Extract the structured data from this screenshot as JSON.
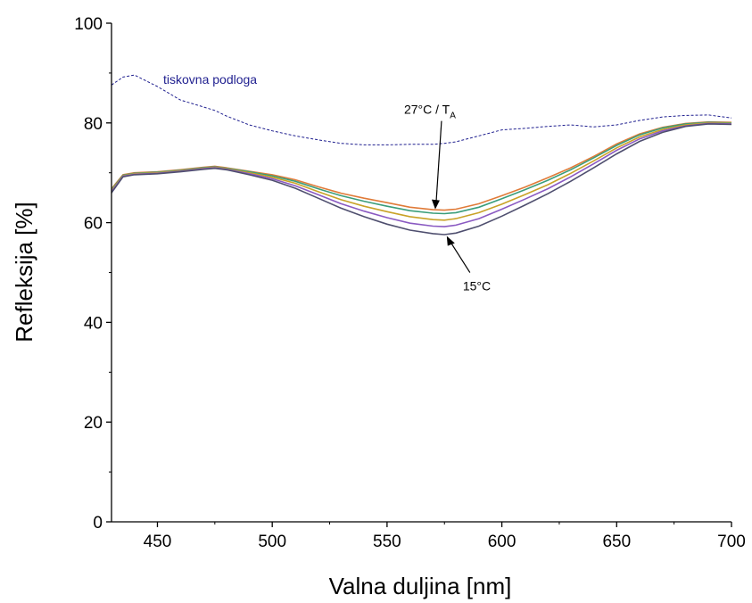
{
  "chart_data": {
    "type": "line",
    "xlabel": "Valna duljina [nm]",
    "ylabel": "Refleksija [%]",
    "xlim": [
      430,
      700
    ],
    "ylim": [
      0,
      100
    ],
    "x_ticks": [
      450,
      500,
      550,
      600,
      650,
      700
    ],
    "y_ticks": [
      0,
      20,
      40,
      60,
      80,
      100
    ],
    "grid": false,
    "x": [
      430,
      435,
      440,
      450,
      460,
      470,
      475,
      480,
      490,
      500,
      510,
      520,
      530,
      540,
      550,
      560,
      570,
      575,
      580,
      590,
      600,
      610,
      620,
      630,
      640,
      650,
      660,
      670,
      680,
      690,
      700
    ],
    "series": [
      {
        "name": "tiskovna podloga",
        "color": "#1f1f8f",
        "style": "dashed",
        "values": [
          87.6,
          89.2,
          89.6,
          87.3,
          84.6,
          83.2,
          82.5,
          81.4,
          79.6,
          78.4,
          77.4,
          76.6,
          75.9,
          75.6,
          75.6,
          75.7,
          75.7,
          75.9,
          76.2,
          77.4,
          78.6,
          78.9,
          79.3,
          79.6,
          79.2,
          79.6,
          80.5,
          81.2,
          81.5,
          81.6,
          81.0
        ]
      },
      {
        "name": "",
        "color": "#e07b39",
        "values": [
          66.8,
          69.6,
          70.0,
          70.2,
          70.6,
          71.1,
          71.3,
          71.0,
          70.3,
          69.6,
          68.6,
          67.2,
          65.9,
          64.9,
          64.0,
          63.1,
          62.6,
          62.5,
          62.7,
          63.8,
          65.4,
          67.1,
          69.0,
          71.0,
          73.3,
          75.8,
          77.8,
          79.1,
          79.9,
          80.2,
          80.1
        ]
      },
      {
        "name": "",
        "color": "#3a9d7a",
        "values": [
          66.6,
          69.5,
          69.9,
          70.1,
          70.5,
          71.0,
          71.2,
          70.9,
          70.2,
          69.4,
          68.3,
          66.8,
          65.4,
          64.3,
          63.3,
          62.4,
          61.9,
          61.8,
          62.0,
          63.1,
          64.8,
          66.6,
          68.5,
          70.6,
          73.0,
          75.5,
          77.6,
          79.0,
          79.8,
          80.1,
          80.0
        ]
      },
      {
        "name": "",
        "color": "#c9a227",
        "values": [
          66.4,
          69.4,
          69.8,
          70.0,
          70.4,
          70.9,
          71.1,
          70.8,
          70.0,
          69.1,
          67.9,
          66.2,
          64.6,
          63.3,
          62.2,
          61.2,
          60.6,
          60.5,
          60.8,
          62.0,
          63.7,
          65.6,
          67.6,
          69.9,
          72.4,
          75.0,
          77.2,
          78.7,
          79.6,
          80.0,
          79.9
        ]
      },
      {
        "name": "",
        "color": "#8a5ac2",
        "values": [
          66.2,
          69.3,
          69.7,
          69.9,
          70.3,
          70.8,
          71.0,
          70.7,
          69.8,
          68.8,
          67.4,
          65.6,
          63.8,
          62.3,
          61.0,
          59.9,
          59.3,
          59.2,
          59.5,
          60.8,
          62.7,
          64.7,
          66.8,
          69.2,
          71.8,
          74.5,
          76.8,
          78.4,
          79.4,
          79.9,
          79.8
        ]
      },
      {
        "name": "",
        "color": "#4f4f6f",
        "values": [
          66.0,
          69.2,
          69.6,
          69.8,
          70.2,
          70.7,
          70.9,
          70.6,
          69.6,
          68.5,
          66.9,
          64.9,
          62.9,
          61.2,
          59.7,
          58.5,
          57.8,
          57.6,
          57.9,
          59.3,
          61.3,
          63.5,
          65.8,
          68.3,
          71.0,
          73.8,
          76.3,
          78.1,
          79.3,
          79.8,
          79.7
        ]
      }
    ],
    "annotations": [
      {
        "text": "27°C / T",
        "subscript": "A",
        "x": 571,
        "y": 62.5
      },
      {
        "text": "15°C",
        "x": 576,
        "y": 57.5
      }
    ]
  }
}
